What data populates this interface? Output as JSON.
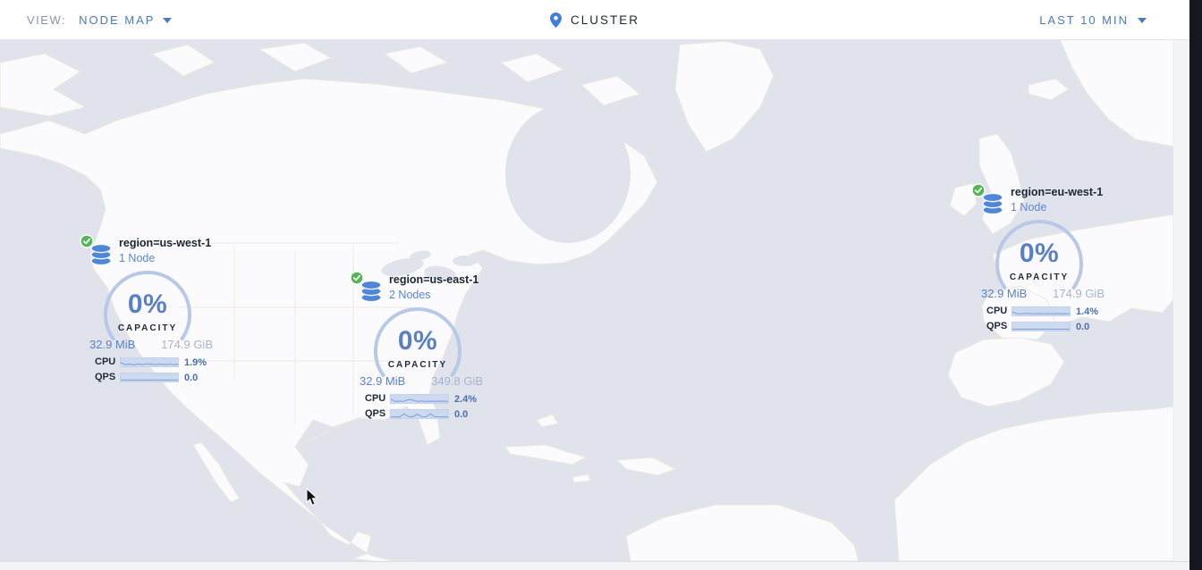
{
  "header": {
    "view_label": "VIEW:",
    "view_value": "NODE MAP",
    "cluster_label": "CLUSTER",
    "time_range": "LAST 10 MIN"
  },
  "colors": {
    "accent_blue": "#4d7abc",
    "gauge_blue": "#5b7fc7",
    "muted_blue": "#a8b4cc",
    "status_green": "#53b655",
    "ocean": "#e0e3ec",
    "land": "#fbfbfd",
    "text_dark": "#1f2735"
  },
  "icons": {
    "pin": "map-pin-icon",
    "caret": "chevron-down-icon",
    "db": "database-icon",
    "check": "healthy-check-icon"
  },
  "nodes": [
    {
      "id": "us-west-1",
      "region_label": "region=us-west-1",
      "node_count_label": "1 Node",
      "capacity_pct": "0%",
      "capacity_label": "CAPACITY",
      "used": "32.9 MiB",
      "total": "174.9 GiB",
      "cpu_label": "CPU",
      "cpu_value": "1.9%",
      "qps_label": "QPS",
      "qps_value": "0.0",
      "status": "healthy",
      "cpu_spark": [
        0.45,
        0.15,
        0.2,
        0.12,
        0.22,
        0.15,
        0.25,
        0.18,
        0.15,
        0.22,
        0.15,
        0.2,
        0.15,
        0.18
      ],
      "qps_spark": [
        0.08,
        0.08,
        0.08,
        0.08,
        0.08,
        0.08,
        0.08,
        0.08,
        0.08,
        0.08,
        0.08,
        0.08,
        0.08,
        0.08
      ]
    },
    {
      "id": "us-east-1",
      "region_label": "region=us-east-1",
      "node_count_label": "2 Nodes",
      "capacity_pct": "0%",
      "capacity_label": "CAPACITY",
      "used": "32.9 MiB",
      "total": "349.8 GiB",
      "cpu_label": "CPU",
      "cpu_value": "2.4%",
      "qps_label": "QPS",
      "qps_value": "0.0",
      "status": "healthy",
      "cpu_spark": [
        0.45,
        0.12,
        0.15,
        0.12,
        0.38,
        0.3,
        0.12,
        0.15,
        0.12,
        0.15,
        0.12,
        0.15,
        0.12,
        0.12
      ],
      "qps_spark": [
        0.06,
        0.06,
        0.06,
        0.55,
        0.08,
        0.06,
        0.5,
        0.08,
        0.06,
        0.55,
        0.08,
        0.06,
        0.06,
        0.06
      ]
    },
    {
      "id": "eu-west-1",
      "region_label": "region=eu-west-1",
      "node_count_label": "1 Node",
      "capacity_pct": "0%",
      "capacity_label": "CAPACITY",
      "used": "32.9 MiB",
      "total": "174.9 GiB",
      "cpu_label": "CPU",
      "cpu_value": "1.4%",
      "qps_label": "QPS",
      "qps_value": "0.0",
      "status": "healthy",
      "cpu_spark": [
        0.42,
        0.15,
        0.12,
        0.18,
        0.15,
        0.12,
        0.15,
        0.12,
        0.15,
        0.12,
        0.15,
        0.12,
        0.15,
        0.12
      ],
      "qps_spark": [
        0.08,
        0.08,
        0.08,
        0.08,
        0.08,
        0.08,
        0.08,
        0.08,
        0.08,
        0.08,
        0.08,
        0.08,
        0.08,
        0.08
      ]
    }
  ]
}
